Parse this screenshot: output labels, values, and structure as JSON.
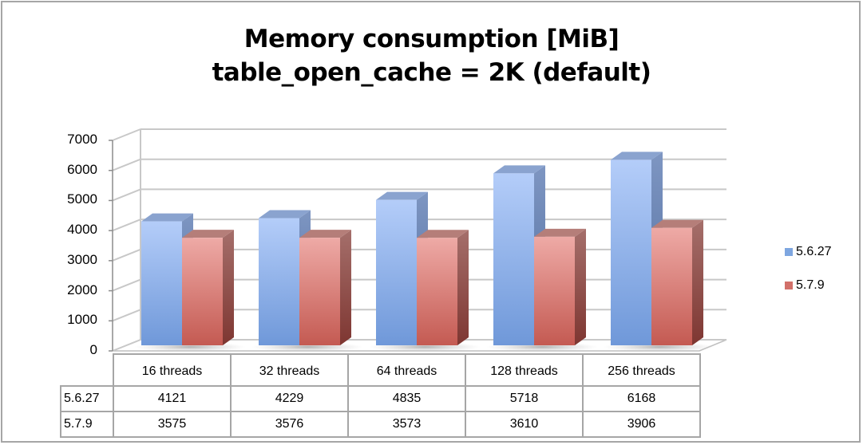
{
  "title": {
    "line1": "Memory consumption [MiB]",
    "line2": "table_open_cache = 2K (default)"
  },
  "y_axis": {
    "ticks": [
      "7000",
      "6000",
      "5000",
      "4000",
      "3000",
      "2000",
      "1000",
      "0"
    ]
  },
  "legend": {
    "items": [
      {
        "label": "5.6.27",
        "color": "#7ea6e0"
      },
      {
        "label": "5.7.9",
        "color": "#d2706a"
      }
    ]
  },
  "table": {
    "columns": [
      "16 threads",
      "32 threads",
      "64 threads",
      "128 threads",
      "256 threads"
    ],
    "rows": [
      {
        "label": "5.6.27",
        "values": [
          "4121",
          "4229",
          "4835",
          "5718",
          "6168"
        ]
      },
      {
        "label": "5.7.9",
        "values": [
          "3575",
          "3576",
          "3573",
          "3610",
          "3906"
        ]
      }
    ]
  },
  "chart_data": {
    "type": "bar",
    "style": "3d-clustered-column",
    "title": "Memory consumption [MiB] / table_open_cache = 2K (default)",
    "categories": [
      "16 threads",
      "32 threads",
      "64 threads",
      "128 threads",
      "256 threads"
    ],
    "series": [
      {
        "name": "5.6.27",
        "values": [
          4121,
          4229,
          4835,
          5718,
          6168
        ],
        "color": "#7ea6e0"
      },
      {
        "name": "5.7.9",
        "values": [
          3575,
          3576,
          3573,
          3610,
          3906
        ],
        "color": "#d2706a"
      }
    ],
    "xlabel": "",
    "ylabel": "",
    "ylim": [
      0,
      7000
    ],
    "yticks": [
      0,
      1000,
      2000,
      3000,
      4000,
      5000,
      6000,
      7000
    ],
    "grid": true,
    "legend_position": "right",
    "data_table": true
  }
}
